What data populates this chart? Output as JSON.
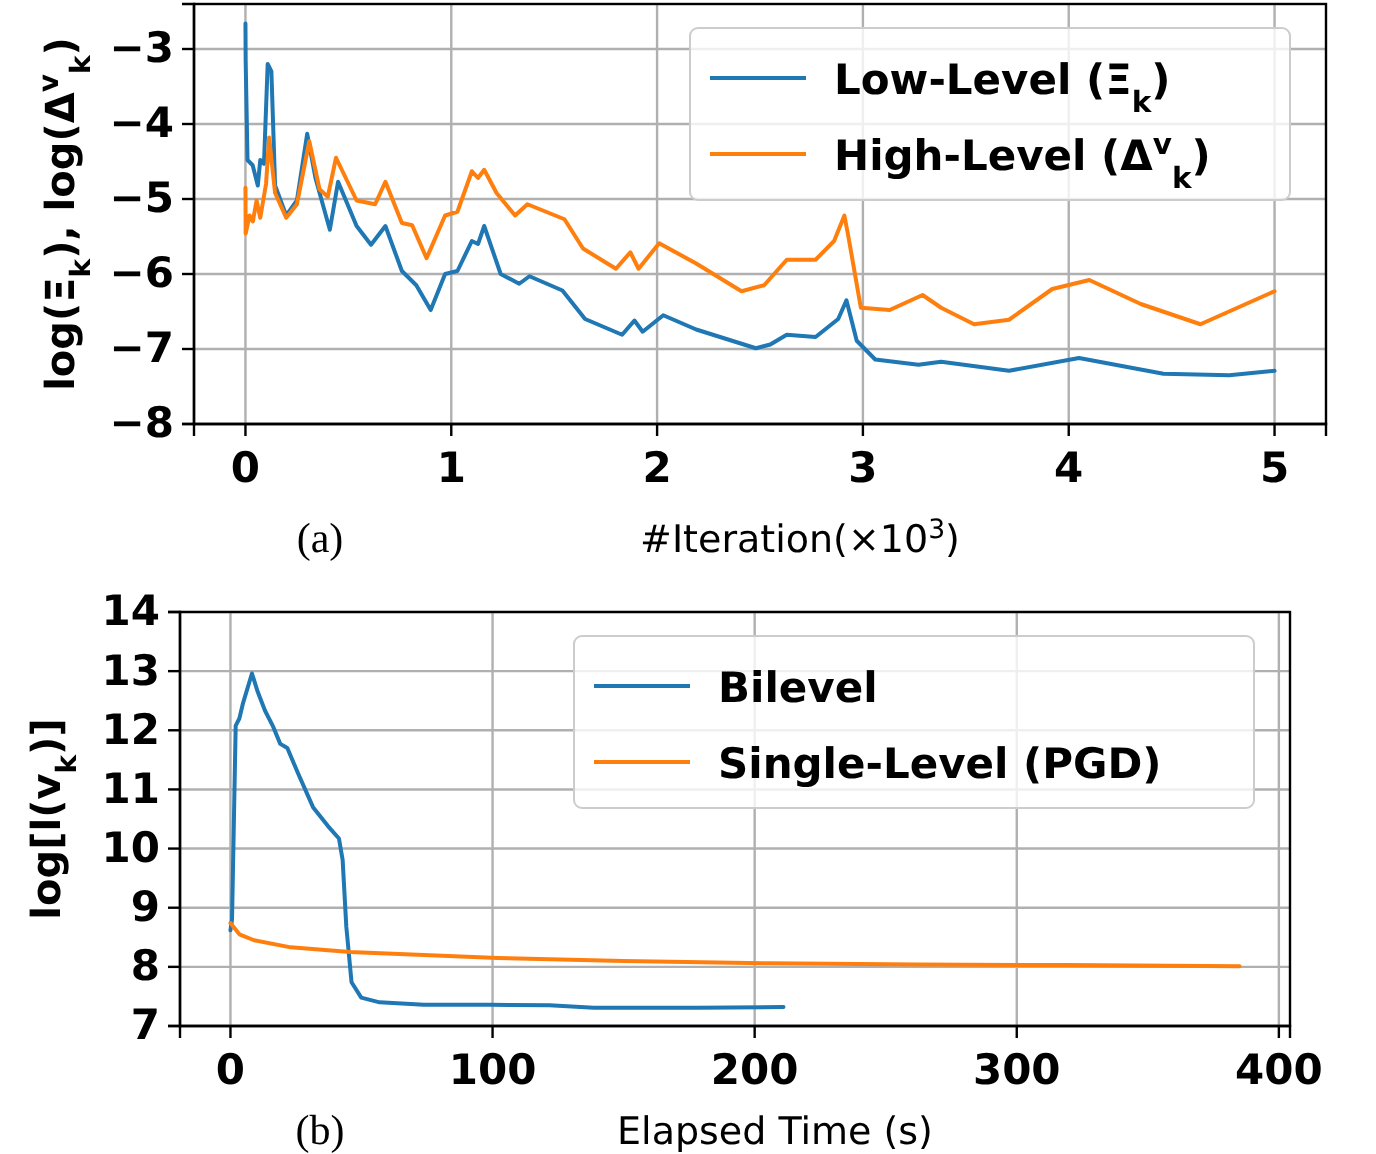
{
  "chart_data": [
    {
      "type": "line",
      "xlabel": "#Iteration(×10$^{3}$)",
      "ylabel": "log(Ξ$_{k}$), log(Δ$^{v}$$_{k}$)",
      "annotations": [
        "(a)"
      ],
      "xlim": [
        -0.25,
        5.25
      ],
      "xticks": [
        0,
        1,
        2,
        3,
        4,
        5
      ],
      "ylim": [
        -8,
        -2.4
      ],
      "yticks": [
        -8,
        -7,
        -6,
        -5,
        -4,
        -3
      ],
      "grid": true,
      "legend": "top right",
      "series": [
        {
          "name": "Low-Level (Ξ$_{k}$)",
          "color": "#1f77b4",
          "x": [
            0,
            0.001,
            0.01,
            0.035,
            0.06,
            0.072,
            0.09,
            0.108,
            0.126,
            0.144,
            0.198,
            0.25,
            0.3,
            0.34,
            0.41,
            0.45,
            0.54,
            0.61,
            0.68,
            0.76,
            0.83,
            0.9,
            0.97,
            1.03,
            1.1,
            1.13,
            1.16,
            1.24,
            1.33,
            1.38,
            1.54,
            1.65,
            1.83,
            1.89,
            1.93,
            2.03,
            2.19,
            2.48,
            2.55,
            2.63,
            2.77,
            2.88,
            2.92,
            2.97,
            3.06,
            3.27,
            3.38,
            3.71,
            4.05,
            4.46,
            4.78,
            5.0
          ],
          "values": [
            -2.66,
            -3.15,
            -4.48,
            -4.55,
            -4.82,
            -4.48,
            -4.53,
            -3.2,
            -3.3,
            -4.82,
            -5.22,
            -5.02,
            -4.13,
            -4.72,
            -5.41,
            -4.77,
            -5.36,
            -5.61,
            -5.36,
            -5.96,
            -6.15,
            -6.48,
            -6.0,
            -5.96,
            -5.56,
            -5.6,
            -5.36,
            -6.0,
            -6.13,
            -6.03,
            -6.22,
            -6.6,
            -6.81,
            -6.62,
            -6.77,
            -6.55,
            -6.74,
            -6.99,
            -6.94,
            -6.81,
            -6.84,
            -6.6,
            -6.35,
            -6.89,
            -7.14,
            -7.21,
            -7.17,
            -7.29,
            -7.12,
            -7.33,
            -7.35,
            -7.29
          ]
        },
        {
          "name": "High-Level (Δ$^{v}$$_{k}$)",
          "color": "#ff7f0e",
          "x": [
            0,
            0.001,
            0.02,
            0.036,
            0.054,
            0.072,
            0.1,
            0.115,
            0.144,
            0.198,
            0.25,
            0.31,
            0.36,
            0.4,
            0.44,
            0.54,
            0.63,
            0.68,
            0.76,
            0.81,
            0.88,
            0.97,
            1.03,
            1.1,
            1.13,
            1.16,
            1.22,
            1.31,
            1.37,
            1.55,
            1.64,
            1.8,
            1.87,
            1.91,
            2.01,
            2.19,
            2.41,
            2.52,
            2.63,
            2.77,
            2.86,
            2.91,
            2.93,
            2.99,
            3.13,
            3.29,
            3.38,
            3.54,
            3.71,
            3.92,
            4.1,
            4.35,
            4.64,
            5.0
          ],
          "values": [
            -4.85,
            -5.46,
            -5.22,
            -5.3,
            -5.02,
            -5.25,
            -4.8,
            -4.18,
            -4.92,
            -5.25,
            -5.07,
            -4.23,
            -4.87,
            -4.97,
            -4.45,
            -5.02,
            -5.07,
            -4.77,
            -5.32,
            -5.35,
            -5.79,
            -5.22,
            -5.17,
            -4.63,
            -4.72,
            -4.61,
            -4.92,
            -5.22,
            -5.07,
            -5.27,
            -5.66,
            -5.93,
            -5.71,
            -5.93,
            -5.59,
            -5.86,
            -6.23,
            -6.15,
            -5.81,
            -5.81,
            -5.56,
            -5.22,
            -5.51,
            -6.45,
            -6.48,
            -6.28,
            -6.45,
            -6.67,
            -6.61,
            -6.2,
            -6.08,
            -6.4,
            -6.67,
            -6.23
          ]
        }
      ]
    },
    {
      "type": "line",
      "xlabel": "Elapsed Time (s)",
      "ylabel": "log[l(v$_{k}$)]",
      "annotations": [
        "(b)"
      ],
      "xlim": [
        -19.25,
        404.25
      ],
      "xticks": [
        0,
        100,
        200,
        300,
        400
      ],
      "ylim": [
        7,
        14
      ],
      "yticks": [
        7,
        8,
        9,
        10,
        11,
        12,
        13,
        14
      ],
      "grid": true,
      "legend": "top right",
      "series": [
        {
          "name": "Bilevel",
          "color": "#1f77b4",
          "x": [
            0,
            0.6,
            2,
            3.4,
            4.8,
            8.2,
            10.4,
            13.2,
            16.1,
            19,
            21.7,
            25.9,
            31.5,
            37.2,
            41.4,
            42.8,
            44.2,
            46.2,
            49.9,
            56.9,
            73.8,
            99,
            121.7,
            138.6,
            178,
            211
          ],
          "values": [
            8.62,
            8.8,
            12.08,
            12.2,
            12.46,
            12.96,
            12.65,
            12.33,
            12.08,
            11.77,
            11.7,
            11.26,
            10.7,
            10.38,
            10.17,
            9.81,
            8.68,
            7.74,
            7.48,
            7.4,
            7.36,
            7.36,
            7.35,
            7.31,
            7.31,
            7.32
          ]
        },
        {
          "name": "Single-Level (PGD)",
          "color": "#ff7f0e",
          "x": [
            0,
            3.4,
            9,
            23,
            45.6,
            73.8,
            102,
            150,
            206,
            262,
            319,
            385
          ],
          "values": [
            8.74,
            8.55,
            8.45,
            8.33,
            8.25,
            8.2,
            8.15,
            8.1,
            8.06,
            8.04,
            8.03,
            8.01
          ]
        }
      ]
    }
  ]
}
